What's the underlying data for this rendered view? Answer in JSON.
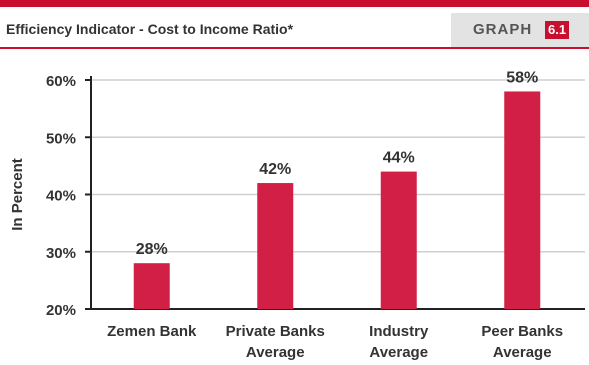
{
  "header": {
    "title": "Efficiency Indicator - Cost to Income Ratio*",
    "tag_label": "GRAPH",
    "tag_number": "6.1"
  },
  "colors": {
    "accent": "#c8102e",
    "bar": "#d21f45",
    "grid": "#cfcfcf",
    "header_tag_bg": "#e3e3e3"
  },
  "chart_data": {
    "type": "bar",
    "title": "Efficiency Indicator - Cost to Income Ratio*",
    "ylabel": "In Percent",
    "xlabel": "",
    "categories": [
      [
        "Zemen Bank"
      ],
      [
        "Private Banks",
        "Average"
      ],
      [
        "Industry",
        "Average"
      ],
      [
        "Peer Banks",
        "Average"
      ]
    ],
    "values": [
      28,
      42,
      44,
      58
    ],
    "value_labels": [
      "28%",
      "42%",
      "44%",
      "58%"
    ],
    "ylim": [
      20,
      60
    ],
    "yticks": [
      20,
      30,
      40,
      50,
      60
    ],
    "ytick_labels": [
      "20%",
      "30%",
      "40%",
      "50%",
      "60%"
    ],
    "grid": true,
    "legend": "none"
  }
}
